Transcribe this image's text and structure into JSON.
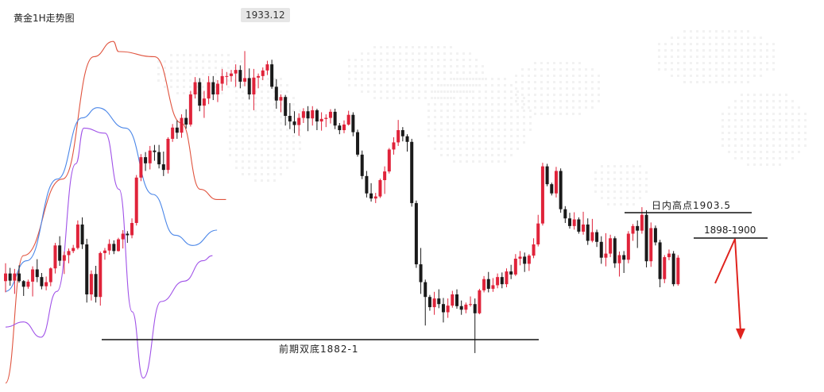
{
  "title": "黄金1H走势图",
  "peak_label": "1933.12",
  "annotations": {
    "previous_double_bottom": "前期双底1882-1",
    "intraday_high": "日内高点1903.5",
    "zone": "1898-1900"
  },
  "colors": {
    "up": "#e0233a",
    "down": "#1a1a1a",
    "upper_band": "#e0533e",
    "middle_band": "#4a86e8",
    "lower_band": "#a052e8",
    "arrow": "#e0231e",
    "level_line": "#111111"
  },
  "chart_data": {
    "type": "candlestick",
    "title": "黄金1H走势图",
    "ylim": [
      1870,
      1940
    ],
    "candles": [
      [
        1888.0,
        1891.5,
        1885.8,
        1889.5
      ],
      [
        1889.5,
        1890.6,
        1887.1,
        1888.1
      ],
      [
        1888.1,
        1890.4,
        1885.5,
        1889.5
      ],
      [
        1889.5,
        1891.1,
        1887.7,
        1888.0
      ],
      [
        1888.0,
        1888.2,
        1885.1,
        1886.9
      ],
      [
        1886.9,
        1888.3,
        1886.5,
        1887.9
      ],
      [
        1887.9,
        1890.9,
        1885.0,
        1890.3
      ],
      [
        1890.3,
        1892.3,
        1887.8,
        1888.8
      ],
      [
        1888.8,
        1889.6,
        1886.4,
        1887.0
      ],
      [
        1887.0,
        1888.9,
        1886.2,
        1887.8
      ],
      [
        1887.8,
        1890.7,
        1887.0,
        1890.5
      ],
      [
        1890.5,
        1895.5,
        1889.5,
        1895.0
      ],
      [
        1895.0,
        1896.8,
        1891.0,
        1892.0
      ],
      [
        1892.0,
        1893.8,
        1889.4,
        1893.1
      ],
      [
        1893.1,
        1894.4,
        1891.5,
        1893.9
      ],
      [
        1893.9,
        1895.1,
        1893.5,
        1894.5
      ],
      [
        1894.5,
        1899.9,
        1894.2,
        1899.1
      ],
      [
        1899.1,
        1900.5,
        1894.3,
        1895.2
      ],
      [
        1895.2,
        1896.3,
        1883.8,
        1885.4
      ],
      [
        1885.4,
        1890.1,
        1884.2,
        1889.4
      ],
      [
        1889.4,
        1891.0,
        1883.8,
        1884.9
      ],
      [
        1884.9,
        1893.8,
        1883.2,
        1893.5
      ],
      [
        1893.5,
        1894.5,
        1892.2,
        1894.0
      ],
      [
        1894.0,
        1896.2,
        1893.2,
        1895.3
      ],
      [
        1895.3,
        1896.0,
        1893.3,
        1893.9
      ],
      [
        1893.9,
        1896.5,
        1893.8,
        1896.2
      ],
      [
        1896.2,
        1898.0,
        1894.4,
        1897.3
      ],
      [
        1897.3,
        1897.8,
        1895.5,
        1897.0
      ],
      [
        1897.0,
        1900.3,
        1896.4,
        1899.4
      ],
      [
        1899.4,
        1908.8,
        1898.9,
        1908.3
      ],
      [
        1908.3,
        1912.9,
        1907.6,
        1912.3
      ],
      [
        1912.3,
        1913.3,
        1909.6,
        1911.1
      ],
      [
        1911.1,
        1914.5,
        1909.9,
        1913.6
      ],
      [
        1913.6,
        1914.7,
        1911.6,
        1913.3
      ],
      [
        1913.3,
        1914.7,
        1910.1,
        1910.9
      ],
      [
        1910.9,
        1913.4,
        1908.6,
        1909.8
      ],
      [
        1909.8,
        1916.2,
        1909.1,
        1915.9
      ],
      [
        1915.9,
        1918.8,
        1915.3,
        1918.1
      ],
      [
        1918.1,
        1919.5,
        1915.9,
        1917.1
      ],
      [
        1917.1,
        1920.7,
        1916.1,
        1920.0
      ],
      [
        1920.0,
        1921.7,
        1917.9,
        1918.7
      ],
      [
        1918.7,
        1925.3,
        1918.3,
        1924.6
      ],
      [
        1924.6,
        1928.0,
        1923.8,
        1927.0
      ],
      [
        1927.0,
        1927.8,
        1921.3,
        1922.4
      ],
      [
        1922.4,
        1925.3,
        1920.0,
        1923.8
      ],
      [
        1923.8,
        1928.2,
        1922.7,
        1927.0
      ],
      [
        1927.0,
        1928.2,
        1923.5,
        1924.6
      ],
      [
        1924.6,
        1927.4,
        1923.1,
        1926.7
      ],
      [
        1926.7,
        1929.6,
        1925.3,
        1928.2
      ],
      [
        1928.2,
        1929.0,
        1926.4,
        1928.2
      ],
      [
        1928.2,
        1929.4,
        1927.1,
        1928.7
      ],
      [
        1928.7,
        1930.5,
        1926.1,
        1929.4
      ],
      [
        1929.4,
        1930.3,
        1925.8,
        1927.1
      ],
      [
        1927.1,
        1933.1,
        1926.2,
        1927.8
      ],
      [
        1927.8,
        1929.7,
        1923.6,
        1924.6
      ],
      [
        1924.6,
        1929.6,
        1921.5,
        1927.9
      ],
      [
        1927.9,
        1928.7,
        1925.8,
        1928.2
      ],
      [
        1928.2,
        1929.9,
        1927.4,
        1929.3
      ],
      [
        1929.3,
        1931.2,
        1928.4,
        1930.5
      ],
      [
        1930.5,
        1931.4,
        1925.7,
        1926.1
      ],
      [
        1926.1,
        1927.6,
        1921.8,
        1923.4
      ],
      [
        1923.4,
        1924.6,
        1921.1,
        1924.1
      ],
      [
        1924.1,
        1924.5,
        1918.5,
        1920.4
      ],
      [
        1920.4,
        1922.9,
        1917.8,
        1919.3
      ],
      [
        1919.3,
        1921.3,
        1917.0,
        1918.6
      ],
      [
        1918.6,
        1920.9,
        1916.5,
        1920.0
      ],
      [
        1920.0,
        1921.9,
        1919.0,
        1921.3
      ],
      [
        1921.3,
        1922.3,
        1917.4,
        1919.9
      ],
      [
        1919.9,
        1922.3,
        1918.5,
        1921.5
      ],
      [
        1921.5,
        1921.8,
        1917.6,
        1919.3
      ],
      [
        1919.3,
        1921.1,
        1917.5,
        1919.8
      ],
      [
        1919.8,
        1920.7,
        1918.2,
        1920.0
      ],
      [
        1920.0,
        1921.7,
        1918.9,
        1921.2
      ],
      [
        1921.2,
        1921.8,
        1917.8,
        1918.5
      ],
      [
        1918.5,
        1919.0,
        1916.8,
        1917.6
      ],
      [
        1917.6,
        1919.5,
        1917.0,
        1918.7
      ],
      [
        1918.7,
        1921.4,
        1918.5,
        1920.6
      ],
      [
        1920.6,
        1921.1,
        1916.4,
        1917.2
      ],
      [
        1917.2,
        1917.7,
        1912.4,
        1912.8
      ],
      [
        1912.8,
        1913.6,
        1908.0,
        1908.6
      ],
      [
        1908.6,
        1909.6,
        1904.4,
        1905.2
      ],
      [
        1905.2,
        1907.2,
        1903.6,
        1904.2
      ],
      [
        1904.2,
        1905.3,
        1903.3,
        1904.6
      ],
      [
        1904.6,
        1908.1,
        1904.3,
        1907.8
      ],
      [
        1907.8,
        1910.5,
        1905.1,
        1909.5
      ],
      [
        1909.5,
        1914.1,
        1909.1,
        1913.8
      ],
      [
        1913.8,
        1916.2,
        1912.8,
        1915.2
      ],
      [
        1915.2,
        1919.6,
        1914.5,
        1917.6
      ],
      [
        1917.6,
        1918.2,
        1915.4,
        1916.4
      ],
      [
        1916.4,
        1916.8,
        1913.4,
        1915.3
      ],
      [
        1915.3,
        1915.9,
        1902.6,
        1903.3
      ],
      [
        1903.3,
        1903.8,
        1890.6,
        1891.3
      ],
      [
        1891.3,
        1894.5,
        1885.5,
        1887.8
      ],
      [
        1887.8,
        1888.3,
        1879.3,
        1884.9
      ],
      [
        1884.9,
        1885.3,
        1882.2,
        1882.9
      ],
      [
        1882.9,
        1885.9,
        1881.4,
        1884.6
      ],
      [
        1884.6,
        1886.4,
        1882.7,
        1883.5
      ],
      [
        1883.5,
        1884.7,
        1879.9,
        1881.9
      ],
      [
        1881.9,
        1884.6,
        1880.8,
        1883.2
      ],
      [
        1883.2,
        1886.1,
        1882.8,
        1885.4
      ],
      [
        1885.4,
        1886.4,
        1882.6,
        1883.1
      ],
      [
        1883.1,
        1884.2,
        1881.4,
        1882.4
      ],
      [
        1882.4,
        1883.8,
        1881.7,
        1883.4
      ],
      [
        1883.4,
        1885.0,
        1883.0,
        1883.5
      ],
      [
        1883.5,
        1884.6,
        1873.9,
        1881.7
      ],
      [
        1881.7,
        1886.5,
        1881.5,
        1886.2
      ],
      [
        1886.2,
        1889.0,
        1885.8,
        1888.4
      ],
      [
        1888.4,
        1889.8,
        1885.8,
        1886.5
      ],
      [
        1886.5,
        1888.6,
        1885.9,
        1887.2
      ],
      [
        1887.2,
        1889.5,
        1886.6,
        1888.8
      ],
      [
        1888.8,
        1889.7,
        1886.6,
        1887.4
      ],
      [
        1887.4,
        1890.5,
        1886.8,
        1889.9
      ],
      [
        1889.9,
        1891.2,
        1888.4,
        1889.3
      ],
      [
        1889.3,
        1893.3,
        1889.0,
        1892.4
      ],
      [
        1892.4,
        1893.9,
        1891.1,
        1892.8
      ],
      [
        1892.8,
        1893.6,
        1889.8,
        1891.4
      ],
      [
        1891.4,
        1893.3,
        1890.0,
        1893.0
      ],
      [
        1893.0,
        1896.4,
        1892.5,
        1895.2
      ],
      [
        1895.2,
        1901.0,
        1894.8,
        1899.3
      ],
      [
        1899.3,
        1911.2,
        1898.9,
        1910.5
      ],
      [
        1910.5,
        1911.0,
        1906.6,
        1907.0
      ],
      [
        1907.0,
        1907.3,
        1904.8,
        1905.2
      ],
      [
        1905.2,
        1910.4,
        1904.4,
        1909.6
      ],
      [
        1909.6,
        1910.1,
        1901.4,
        1902.1
      ],
      [
        1902.1,
        1902.7,
        1899.4,
        1900.3
      ],
      [
        1900.3,
        1901.4,
        1898.3,
        1898.8
      ],
      [
        1898.8,
        1901.5,
        1898.1,
        1900.1
      ],
      [
        1900.1,
        1900.5,
        1897.3,
        1897.7
      ],
      [
        1897.7,
        1901.6,
        1897.1,
        1899.1
      ],
      [
        1899.1,
        1900.3,
        1895.1,
        1895.9
      ],
      [
        1895.9,
        1900.2,
        1895.6,
        1897.6
      ],
      [
        1897.6,
        1898.1,
        1894.7,
        1895.7
      ],
      [
        1895.7,
        1896.8,
        1891.4,
        1892.6
      ],
      [
        1892.6,
        1897.4,
        1890.9,
        1893.4
      ],
      [
        1893.4,
        1897.1,
        1892.7,
        1896.4
      ],
      [
        1896.4,
        1896.8,
        1890.6,
        1891.5
      ],
      [
        1891.5,
        1893.8,
        1888.9,
        1893.1
      ],
      [
        1893.1,
        1893.9,
        1889.6,
        1892.2
      ],
      [
        1892.2,
        1897.8,
        1891.5,
        1897.3
      ],
      [
        1897.3,
        1899.2,
        1895.9,
        1898.8
      ],
      [
        1898.8,
        1899.9,
        1894.5,
        1897.9
      ],
      [
        1897.9,
        1902.5,
        1897.3,
        1901.0
      ],
      [
        1901.0,
        1901.9,
        1890.7,
        1891.9
      ],
      [
        1891.9,
        1899.5,
        1890.8,
        1898.4
      ],
      [
        1898.4,
        1898.9,
        1895.0,
        1895.6
      ],
      [
        1895.6,
        1896.1,
        1886.8,
        1888.4
      ],
      [
        1888.4,
        1893.1,
        1887.6,
        1892.7
      ],
      [
        1892.7,
        1894.2,
        1892.1,
        1893.4
      ],
      [
        1893.4,
        1893.9,
        1887.0,
        1887.4
      ],
      [
        1887.4,
        1893.1,
        1887.1,
        1892.6
      ]
    ],
    "bands": {
      "upper": [
        [
          1873,
          1868
        ],
        [
          1952,
          1893
        ],
        [
          2125,
          1908
        ],
        [
          2264,
          1932
        ],
        [
          2350,
          1935
        ],
        [
          2374,
          1933
        ],
        [
          2533,
          1932
        ],
        [
          2652,
          1919
        ],
        [
          2736,
          1906
        ],
        [
          2810,
          1904
        ],
        [
          2850,
          1904
        ]
      ],
      "middle": [
        [
          1873,
          1886
        ],
        [
          1967,
          1892
        ],
        [
          2102,
          1908
        ],
        [
          2212,
          1920
        ],
        [
          2281,
          1922
        ],
        [
          2405,
          1918
        ],
        [
          2526,
          1905
        ],
        [
          2624,
          1897
        ],
        [
          2703,
          1895
        ],
        [
          2810,
          1898
        ]
      ],
      "lower": [
        [
          1873,
          1879
        ],
        [
          1952,
          1880
        ],
        [
          2030,
          1877
        ],
        [
          2101,
          1886
        ],
        [
          2184,
          1911
        ],
        [
          2220,
          1918
        ],
        [
          2314,
          1917
        ],
        [
          2376,
          1906
        ],
        [
          2434,
          1882
        ],
        [
          2483,
          1869
        ],
        [
          2562,
          1884
        ],
        [
          2665,
          1888
        ],
        [
          2747,
          1892
        ],
        [
          2790,
          1893
        ]
      ]
    },
    "levels": [
      {
        "label": "前期双底1882-1",
        "value": 1881
      },
      {
        "label": "日内高点1903.5",
        "value": 1903.5
      },
      {
        "label": "1898-1900",
        "value": 1899
      }
    ],
    "peak_label": "1933.12"
  }
}
